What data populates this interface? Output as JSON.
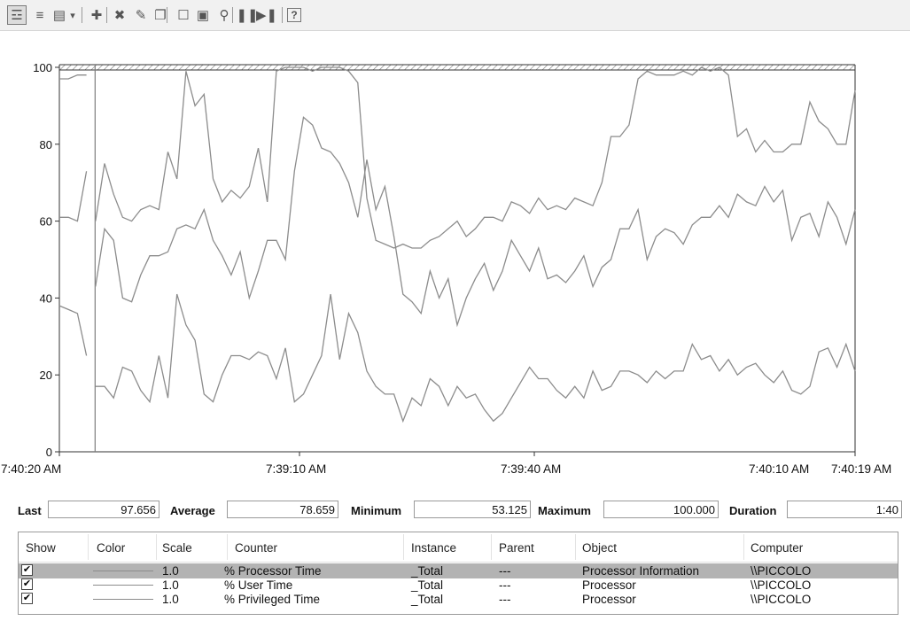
{
  "toolbar": {
    "buttons": [
      {
        "icon": "view-graph-icon",
        "glyph": "☲"
      },
      {
        "icon": "view-histogram-icon",
        "glyph": "≡"
      },
      {
        "icon": "change-graph-type-icon",
        "glyph": "▤"
      },
      {
        "icon": "dropdown-arrow-icon",
        "glyph": "▾"
      },
      {
        "icon": "add-counter-icon",
        "glyph": "✚"
      },
      {
        "icon": "delete-counter-icon",
        "glyph": "✖"
      },
      {
        "icon": "highlight-icon",
        "glyph": "✎"
      },
      {
        "icon": "copy-properties-icon",
        "glyph": "❐"
      },
      {
        "icon": "paste-counter-list-icon",
        "glyph": "☐"
      },
      {
        "icon": "properties-icon",
        "glyph": "▣"
      },
      {
        "icon": "zoom-icon",
        "glyph": "⚲"
      },
      {
        "icon": "freeze-display-icon",
        "glyph": "❚❚"
      },
      {
        "icon": "update-data-icon",
        "glyph": "▶❚"
      },
      {
        "icon": "help-icon",
        "glyph": "?"
      }
    ]
  },
  "chart_data": {
    "type": "line",
    "ylim": [
      0,
      100
    ],
    "yticks": [
      0,
      20,
      40,
      60,
      80,
      100
    ],
    "xlabels": [
      "7:40:20 AM",
      "7:39:10 AM",
      "7:39:40 AM",
      "7:40:10 AM",
      "7:40:19 AM"
    ],
    "duration_seconds": 100,
    "current_index": 4,
    "grid": false,
    "line_color": "#8c8c8c",
    "series": [
      {
        "values": [
          97,
          97,
          98,
          98,
          60,
          75,
          67,
          61,
          60,
          63,
          64,
          63,
          78,
          71,
          99,
          90,
          93,
          71,
          65,
          68,
          66,
          69,
          79,
          65,
          99,
          100,
          100,
          100,
          99,
          100,
          100,
          100,
          99,
          96,
          66,
          55,
          54,
          53,
          54,
          53,
          53,
          55,
          56,
          58,
          60,
          56,
          58,
          61,
          61,
          60,
          65,
          64,
          62,
          66,
          63,
          64,
          63,
          66,
          65,
          64,
          70,
          82,
          82,
          85,
          97,
          99,
          98,
          98,
          98,
          99,
          98,
          100,
          99,
          100,
          98,
          82,
          84,
          78,
          81,
          78,
          78,
          80,
          80,
          91,
          86,
          84,
          80,
          80,
          94
        ]
      },
      {
        "values": [
          61,
          61,
          60,
          73,
          43,
          58,
          55,
          40,
          39,
          46,
          51,
          51,
          52,
          58,
          59,
          58,
          63,
          55,
          51,
          46,
          52,
          40,
          47,
          55,
          55,
          50,
          73,
          87,
          85,
          79,
          78,
          75,
          70,
          61,
          76,
          63,
          69,
          56,
          41,
          39,
          36,
          47,
          40,
          45,
          33,
          40,
          45,
          49,
          42,
          47,
          55,
          51,
          47,
          53,
          45,
          46,
          44,
          47,
          51,
          43,
          48,
          50,
          58,
          58,
          63,
          50,
          56,
          58,
          57,
          54,
          59,
          61,
          61,
          64,
          61,
          67,
          65,
          64,
          69,
          65,
          68,
          55,
          61,
          62,
          56,
          65,
          61,
          54,
          63,
          69
        ]
      },
      {
        "values": [
          38,
          37,
          36,
          25,
          17,
          17,
          14,
          22,
          21,
          16,
          13,
          25,
          14,
          41,
          33,
          29,
          15,
          13,
          20,
          25,
          25,
          24,
          26,
          25,
          19,
          27,
          13,
          15,
          20,
          25,
          41,
          24,
          36,
          31,
          21,
          17,
          15,
          15,
          8,
          14,
          12,
          19,
          17,
          12,
          17,
          14,
          15,
          11,
          8,
          10,
          14,
          18,
          22,
          19,
          19,
          16,
          14,
          17,
          14,
          21,
          16,
          17,
          21,
          21,
          20,
          18,
          21,
          19,
          21,
          21,
          28,
          24,
          25,
          21,
          24,
          20,
          22,
          23,
          20,
          18,
          21,
          16,
          15,
          17,
          26,
          27,
          22,
          28,
          21,
          24
        ]
      }
    ]
  },
  "stats": {
    "last_label": "Last",
    "last_value": "97.656",
    "average_label": "Average",
    "average_value": "78.659",
    "minimum_label": "Minimum",
    "minimum_value": "53.125",
    "maximum_label": "Maximum",
    "maximum_value": "100.000",
    "duration_label": "Duration",
    "duration_value": "1:40"
  },
  "table": {
    "headers": {
      "show": "Show",
      "color": "Color",
      "scale": "Scale",
      "counter": "Counter",
      "instance": "Instance",
      "parent": "Parent",
      "object": "Object",
      "computer": "Computer"
    },
    "rows": [
      {
        "checked": true,
        "selected": true,
        "scale": "1.0",
        "counter": "% Processor Time",
        "instance": "_Total",
        "parent": "---",
        "object": "Processor Information",
        "computer": "\\\\PICCOLO"
      },
      {
        "checked": true,
        "selected": false,
        "scale": "1.0",
        "counter": "% User Time",
        "instance": "_Total",
        "parent": "---",
        "object": "Processor",
        "computer": "\\\\PICCOLO"
      },
      {
        "checked": true,
        "selected": false,
        "scale": "1.0",
        "counter": "% Privileged Time",
        "instance": "_Total",
        "parent": "---",
        "object": "Processor",
        "computer": "\\\\PICCOLO"
      }
    ]
  }
}
